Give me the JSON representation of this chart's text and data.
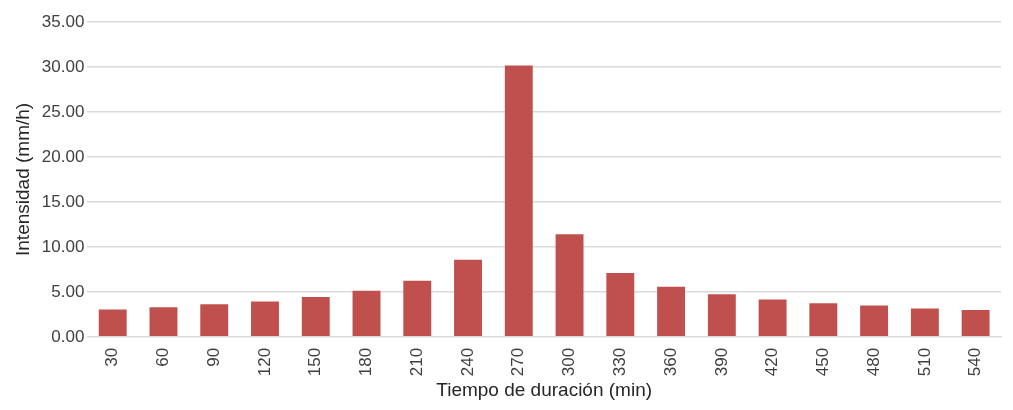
{
  "chart_data": {
    "type": "bar",
    "xlabel": "Tiempo de duración (min)",
    "ylabel": "Intensidad (mm/h)",
    "categories": [
      "30",
      "60",
      "90",
      "120",
      "150",
      "180",
      "210",
      "240",
      "270",
      "300",
      "330",
      "360",
      "390",
      "420",
      "450",
      "480",
      "510",
      "540"
    ],
    "values": [
      3.05,
      3.28,
      3.62,
      3.93,
      4.42,
      5.11,
      6.23,
      8.56,
      30.17,
      11.4,
      7.1,
      5.57,
      4.73,
      4.16,
      3.74,
      3.47,
      3.16,
      2.97
    ],
    "color": "#c0504d",
    "ylim": [
      0,
      35
    ],
    "yticks": [
      {
        "value": 0,
        "label": "0.00"
      },
      {
        "value": 5,
        "label": "5.00"
      },
      {
        "value": 10,
        "label": "10.00"
      },
      {
        "value": 15,
        "label": "15.00"
      },
      {
        "value": 20,
        "label": "20.00"
      },
      {
        "value": 25,
        "label": "25.00"
      },
      {
        "value": 30,
        "label": "30.00"
      },
      {
        "value": 35,
        "label": "35.00"
      }
    ],
    "grid": "y",
    "legend": false
  }
}
